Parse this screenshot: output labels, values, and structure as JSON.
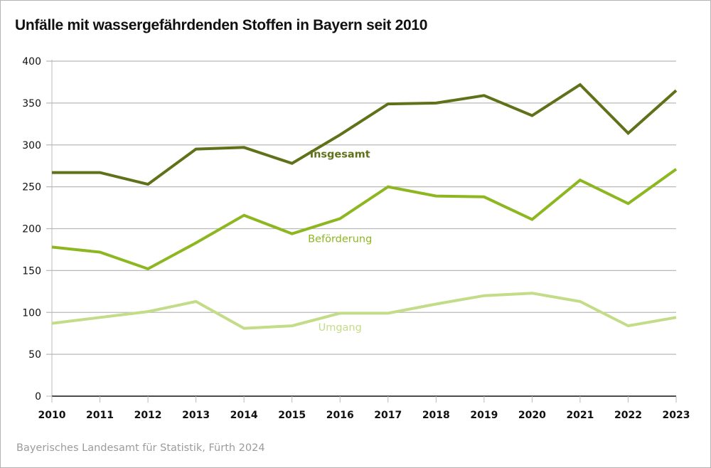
{
  "chart_data": {
    "type": "line",
    "title": "Unfälle mit wassergefährdenden Stoffen in Bayern seit 2010",
    "xlabel": "",
    "ylabel": "",
    "x": [
      "2010",
      "2011",
      "2012",
      "2013",
      "2014",
      "2015",
      "2016",
      "2017",
      "2018",
      "2019",
      "2020",
      "2021",
      "2022",
      "2023"
    ],
    "ylim": [
      0,
      400
    ],
    "yticks": [
      0,
      50,
      100,
      150,
      200,
      250,
      300,
      350,
      400
    ],
    "grid": true,
    "legend": "inline labels",
    "series": [
      {
        "name": "Insgesamt",
        "color": "#5f7219",
        "values": [
          267,
          267,
          253,
          295,
          297,
          278,
          312,
          349,
          350,
          359,
          335,
          372,
          314,
          365
        ]
      },
      {
        "name": "Beförderung",
        "color": "#8db720",
        "values": [
          178,
          172,
          152,
          183,
          216,
          194,
          212,
          250,
          239,
          238,
          211,
          258,
          230,
          271
        ]
      },
      {
        "name": "Umgang",
        "color": "#c3dc88",
        "values": [
          87,
          94,
          101,
          113,
          81,
          84,
          99,
          99,
          110,
          120,
          123,
          113,
          84,
          94
        ]
      }
    ]
  },
  "source": "Bayerisches Landesamt für Statistik, Fürth 2024",
  "colors": {
    "grid": "#b9b9b9",
    "axis": "#111111"
  }
}
